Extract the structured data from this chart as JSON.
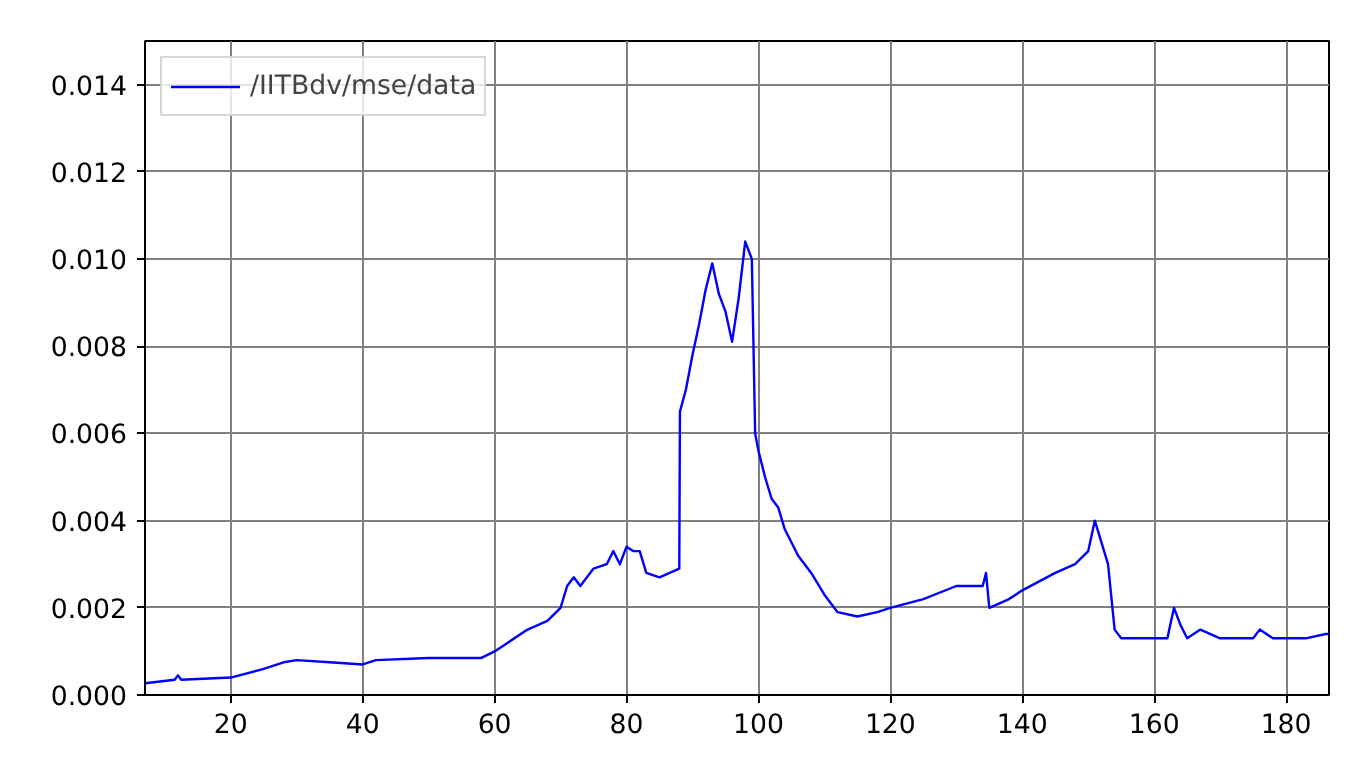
{
  "chart_data": {
    "type": "line",
    "xlim": [
      7,
      186.5
    ],
    "ylim": [
      0,
      0.015
    ],
    "xticks": [
      20,
      40,
      60,
      80,
      100,
      120,
      140,
      160,
      180
    ],
    "yticks": [
      {
        "value": 0,
        "label": "0.000"
      },
      {
        "value": 0.002,
        "label": "0.002"
      },
      {
        "value": 0.004,
        "label": "0.004"
      },
      {
        "value": 0.006,
        "label": "0.006"
      },
      {
        "value": 0.008,
        "label": "0.008"
      },
      {
        "value": 0.01,
        "label": "0.010"
      },
      {
        "value": 0.012,
        "label": "0.012"
      },
      {
        "value": 0.014,
        "label": "0.014"
      }
    ],
    "grid": true,
    "legend": "top left",
    "line_style": "solid",
    "series": [
      {
        "name": "/IITBdv/mse/data",
        "color": "#0000ff",
        "x": [
          7,
          11.5,
          12,
          12.5,
          20,
          25,
          28,
          30,
          35,
          40,
          42,
          50,
          55,
          58,
          60,
          62,
          65,
          68,
          70,
          71,
          72,
          73,
          75,
          77,
          78,
          79,
          80,
          81,
          82,
          83,
          85,
          88,
          88.1,
          89,
          90,
          91,
          92,
          93,
          94,
          95,
          96,
          97,
          98,
          99,
          99.5,
          100,
          101,
          102,
          103,
          104,
          106,
          108,
          110,
          112,
          115,
          118,
          120,
          125,
          130,
          134,
          134.5,
          135,
          138,
          140,
          145,
          148,
          150,
          151,
          152,
          153,
          154,
          155,
          160,
          162,
          163,
          164,
          165,
          167,
          170,
          175,
          176,
          178,
          183,
          186,
          186.5
        ],
        "values": [
          0.00027,
          0.00035,
          0.00045,
          0.00035,
          0.0004,
          0.0006,
          0.00075,
          0.0008,
          0.00075,
          0.0007,
          0.0008,
          0.00085,
          0.00085,
          0.00085,
          0.001,
          0.0012,
          0.0015,
          0.0017,
          0.002,
          0.0025,
          0.0027,
          0.0025,
          0.0029,
          0.003,
          0.0033,
          0.003,
          0.0034,
          0.0033,
          0.0033,
          0.0028,
          0.0027,
          0.0029,
          0.0065,
          0.007,
          0.0078,
          0.0085,
          0.0093,
          0.0099,
          0.0092,
          0.0088,
          0.0081,
          0.0091,
          0.0104,
          0.01,
          0.006,
          0.0056,
          0.005,
          0.0045,
          0.0043,
          0.0038,
          0.0032,
          0.0028,
          0.0023,
          0.0019,
          0.0018,
          0.0019,
          0.002,
          0.0022,
          0.0025,
          0.0025,
          0.0028,
          0.002,
          0.0022,
          0.0024,
          0.0028,
          0.003,
          0.0033,
          0.004,
          0.0035,
          0.003,
          0.0015,
          0.0013,
          0.0013,
          0.0013,
          0.002,
          0.0016,
          0.0013,
          0.0015,
          0.0013,
          0.0013,
          0.0015,
          0.0013,
          0.0013,
          0.0014,
          0.0014
        ]
      }
    ]
  }
}
